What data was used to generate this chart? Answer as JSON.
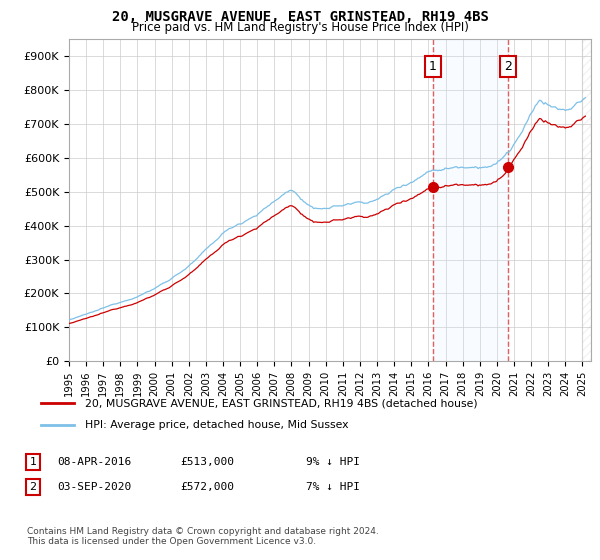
{
  "title": "20, MUSGRAVE AVENUE, EAST GRINSTEAD, RH19 4BS",
  "subtitle": "Price paid vs. HM Land Registry's House Price Index (HPI)",
  "ylabel_ticks": [
    "£0",
    "£100K",
    "£200K",
    "£300K",
    "£400K",
    "£500K",
    "£600K",
    "£700K",
    "£800K",
    "£900K"
  ],
  "ytick_values": [
    0,
    100000,
    200000,
    300000,
    400000,
    500000,
    600000,
    700000,
    800000,
    900000
  ],
  "ylim": [
    0,
    950000
  ],
  "xlim_start": 1995.0,
  "xlim_end": 2025.5,
  "xticks": [
    1995,
    1996,
    1997,
    1998,
    1999,
    2000,
    2001,
    2002,
    2003,
    2004,
    2005,
    2006,
    2007,
    2008,
    2009,
    2010,
    2011,
    2012,
    2013,
    2014,
    2015,
    2016,
    2017,
    2018,
    2019,
    2020,
    2021,
    2022,
    2023,
    2024,
    2025
  ],
  "sale1_year": 2016.27,
  "sale1_price": 513000,
  "sale2_year": 2020.67,
  "sale2_price": 572000,
  "hpi_color": "#7dc0e8",
  "sold_color": "#cc0000",
  "dashed_color": "#e06060",
  "shade_color": "#ddeeff",
  "legend_sold_label": "20, MUSGRAVE AVENUE, EAST GRINSTEAD, RH19 4BS (detached house)",
  "legend_hpi_label": "HPI: Average price, detached house, Mid Sussex",
  "footnote": "Contains HM Land Registry data © Crown copyright and database right 2024.\nThis data is licensed under the Open Government Licence v3.0.",
  "background_color": "#ffffff",
  "grid_color": "#cccccc"
}
